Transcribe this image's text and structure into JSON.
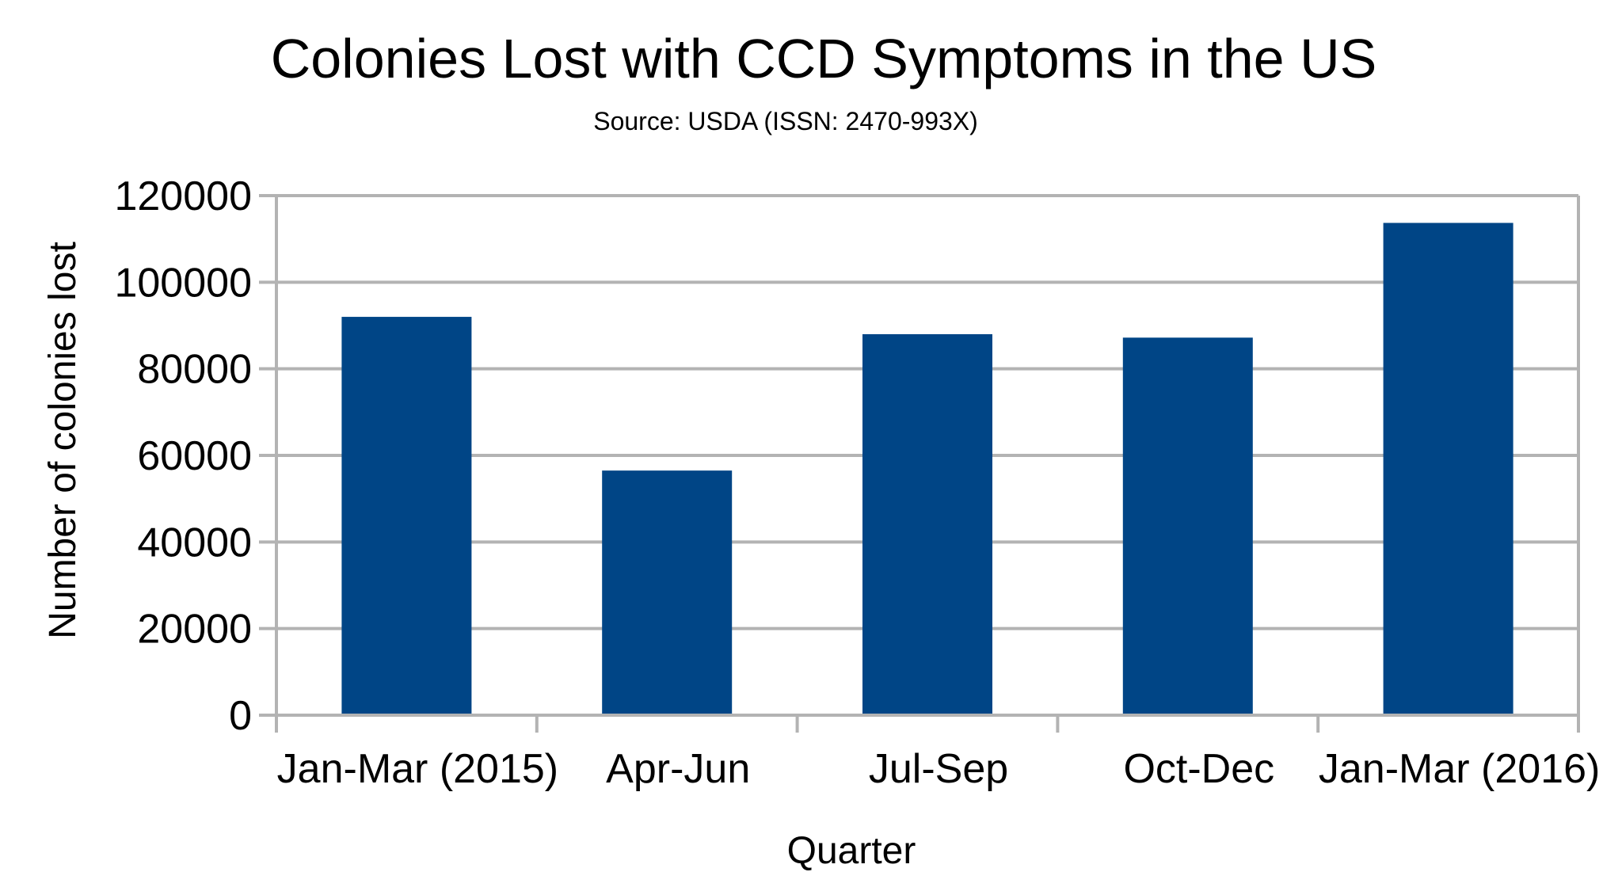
{
  "chart_data": {
    "type": "bar",
    "title": "Colonies Lost with CCD Symptoms in the US",
    "subtitle": "Source: USDA (ISSN: 2470-993X)",
    "xlabel": "Quarter",
    "ylabel": "Number of colonies lost",
    "categories": [
      "Jan-Mar (2015)",
      "Apr-Jun",
      "Jul-Sep",
      "Oct-Dec",
      "Jan-Mar (2016)"
    ],
    "values": [
      92000,
      56500,
      88000,
      87200,
      113700
    ],
    "ylim": [
      0,
      120000
    ],
    "yticks": [
      "0",
      "20000",
      "40000",
      "60000",
      "80000",
      "100000",
      "120000"
    ],
    "grid": true,
    "legend": "none",
    "bar_color": "#004586"
  }
}
